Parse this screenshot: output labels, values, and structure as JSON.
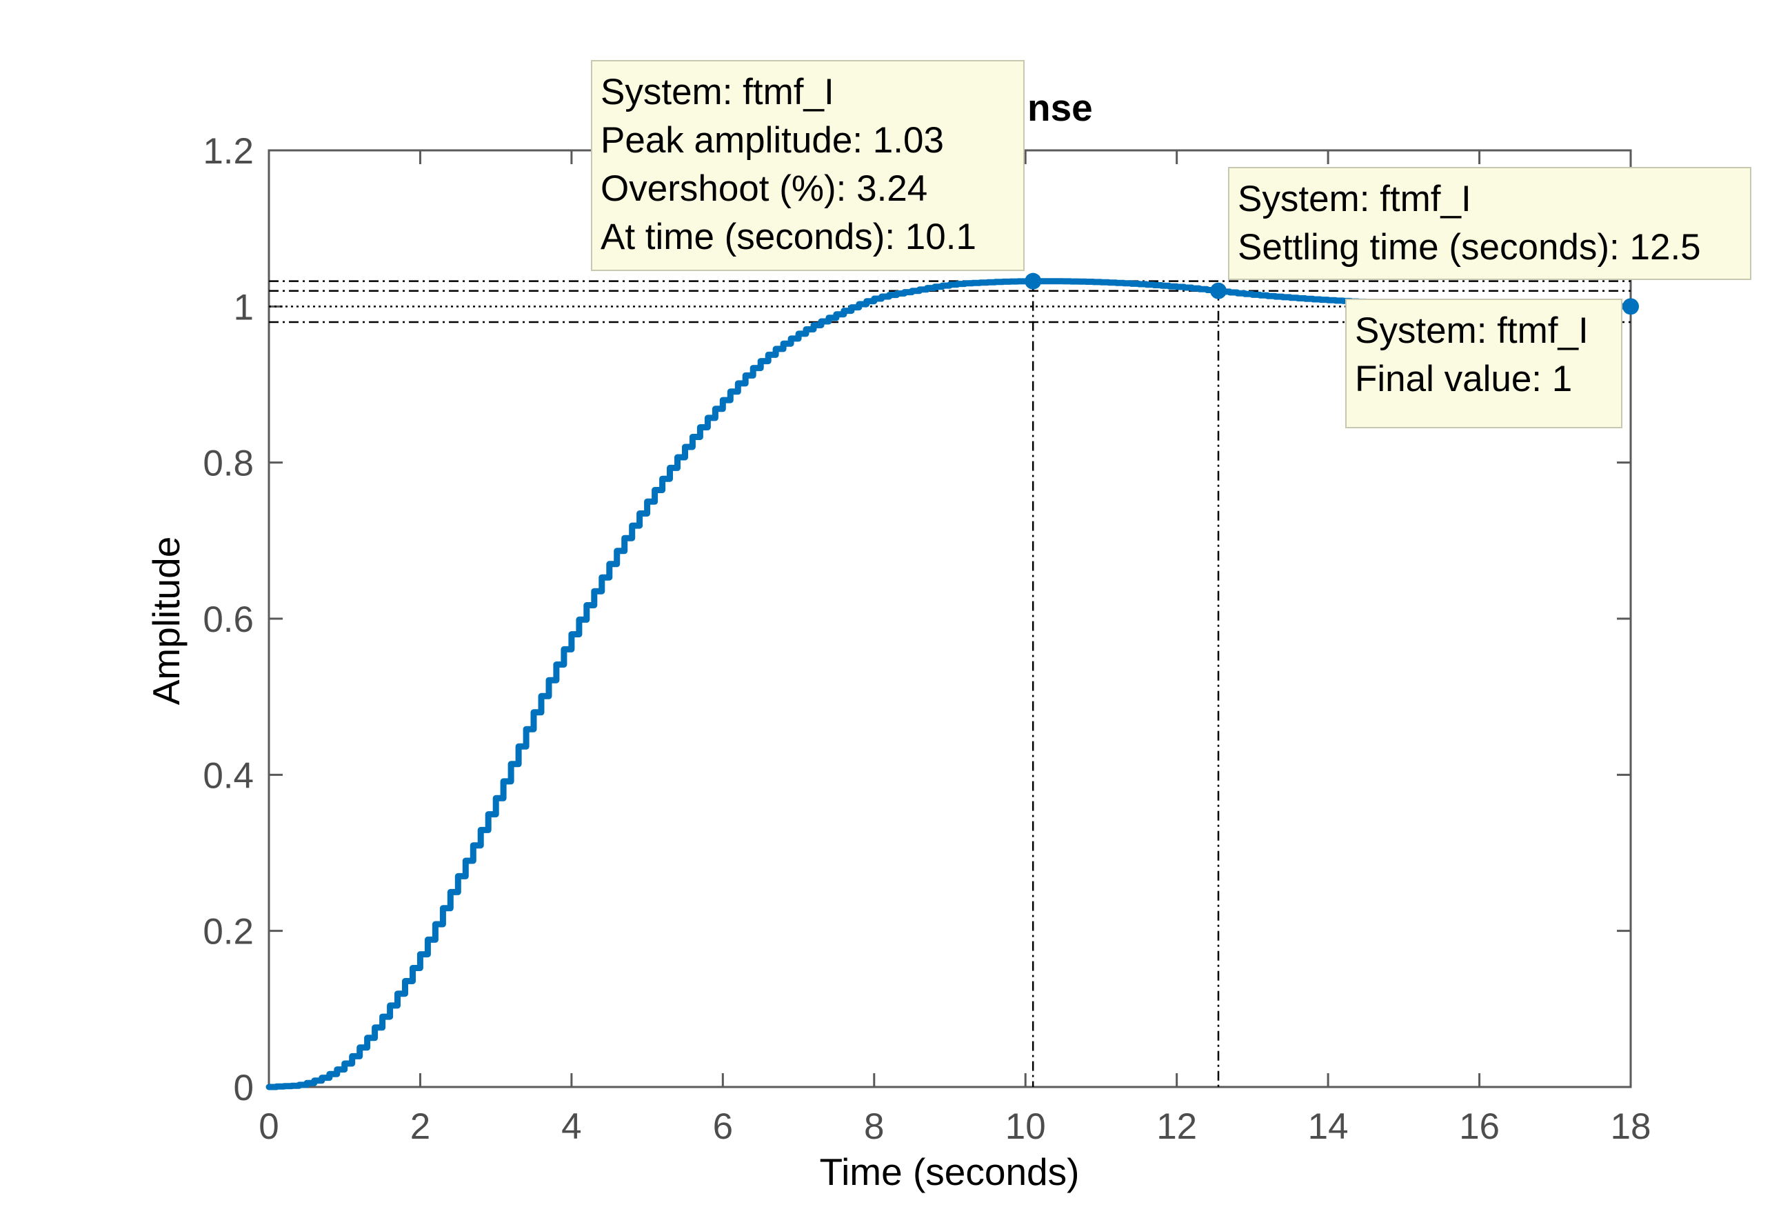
{
  "chart_data": {
    "type": "line",
    "title": "nse",
    "xlabel": "Time (seconds)",
    "ylabel": "Amplitude",
    "xlim": [
      0,
      18
    ],
    "ylim": [
      0,
      1.2
    ],
    "xticks": [
      0,
      2,
      4,
      6,
      8,
      10,
      12,
      14,
      16,
      18
    ],
    "xtick_labels": [
      "0",
      "2",
      "4",
      "6",
      "8",
      "10",
      "12",
      "14",
      "16",
      "18"
    ],
    "yticks": [
      0,
      0.2,
      0.4,
      0.6,
      0.8,
      1,
      1.2
    ],
    "ytick_labels": [
      "0",
      "0.2",
      "0.4",
      "0.6",
      "0.8",
      "1",
      "1.2"
    ],
    "grid": false,
    "series": [
      {
        "color": "#0072bd",
        "style": "staircase",
        "x": [
          0,
          0.5,
          1,
          1.5,
          2,
          2.5,
          3,
          3.5,
          4,
          4.5,
          5,
          5.5,
          6,
          6.5,
          7,
          7.5,
          8,
          8.5,
          9,
          9.5,
          10.1,
          11,
          12,
          12.5,
          13,
          14,
          15,
          16,
          17,
          18
        ],
        "y": [
          0,
          0.005,
          0.03,
          0.09,
          0.17,
          0.27,
          0.37,
          0.48,
          0.58,
          0.67,
          0.75,
          0.82,
          0.88,
          0.93,
          0.965,
          0.99,
          1.01,
          1.02,
          1.028,
          1.031,
          1.0324,
          1.031,
          1.025,
          1.02,
          1.015,
          1.008,
          1.004,
          1.002,
          1.001,
          1.0
        ]
      }
    ],
    "reference_lines": {
      "final_value": 1,
      "settling_band": [
        0.98,
        1.02
      ],
      "peak": 1.0324,
      "peak_time": 10.1,
      "settling_time": 12.55
    },
    "markers": [
      {
        "name": "peak",
        "x": 10.1,
        "y": 1.0324
      },
      {
        "name": "settling",
        "x": 12.55,
        "y": 1.02
      },
      {
        "name": "final",
        "x": 18,
        "y": 1.0
      }
    ],
    "annotations": [
      {
        "name": "peak-tip",
        "lines": [
          "System: ftmf_I",
          "Peak amplitude: 1.03",
          "Overshoot (%): 3.24",
          "At time (seconds): 10.1"
        ]
      },
      {
        "name": "settling-tip",
        "lines": [
          "System: ftmf_I",
          "Settling time (seconds): 12.5"
        ]
      },
      {
        "name": "final-tip",
        "lines": [
          "System: ftmf_I",
          "Final value: 1"
        ]
      }
    ]
  }
}
